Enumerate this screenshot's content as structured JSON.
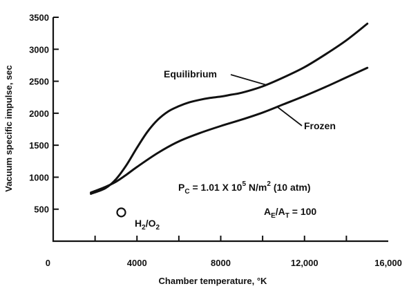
{
  "chart_data": {
    "type": "line",
    "title": "",
    "xlabel": "Chamber temperature, °K",
    "ylabel": "Vacuum specific impulse, sec",
    "xlim": [
      0,
      16000
    ],
    "ylim": [
      0,
      3500
    ],
    "x_ticks": [
      0,
      4000,
      8000,
      12000,
      16000
    ],
    "x_tick_labels": [
      "0",
      "4000",
      "8000",
      "12,000",
      "16,000"
    ],
    "y_ticks": [
      500,
      1000,
      1500,
      2000,
      2500,
      3000,
      3500
    ],
    "y_tick_labels": [
      "500",
      "1000",
      "1500",
      "2000",
      "2500",
      "3000",
      "3500"
    ],
    "grid": false,
    "series": [
      {
        "name": "Equilibrium",
        "x": [
          1800,
          2500,
          3000,
          3500,
          4000,
          4500,
          5000,
          5500,
          6000,
          6500,
          7000,
          7500,
          8000,
          8500,
          9000,
          10000,
          11000,
          12000,
          13000,
          14000,
          15000
        ],
        "y": [
          740,
          830,
          970,
          1190,
          1460,
          1710,
          1900,
          2030,
          2110,
          2170,
          2210,
          2240,
          2260,
          2290,
          2320,
          2420,
          2560,
          2720,
          2920,
          3140,
          3400
        ]
      },
      {
        "name": "Frozen",
        "x": [
          1800,
          2500,
          3000,
          3500,
          4000,
          5000,
          6000,
          7000,
          8000,
          9000,
          10000,
          11000,
          12000,
          13000,
          14000,
          15000
        ],
        "y": [
          760,
          850,
          930,
          1040,
          1160,
          1380,
          1560,
          1690,
          1800,
          1900,
          2010,
          2140,
          2270,
          2410,
          2560,
          2710
        ]
      }
    ],
    "marker": {
      "label_main": "H",
      "label_sub1": "2",
      "label_sep": "/O",
      "label_sub2": "2",
      "x": 3250,
      "y": 450
    },
    "annotations": {
      "pressure": {
        "p": "P",
        "p_sub": "C",
        "eq": " = 1.01 X 10",
        "exp": "5",
        "unit": " N/m",
        "unit_exp": "2",
        "atm": " (10 atm)"
      },
      "area_ratio": {
        "a1": "A",
        "a1_sub": "E",
        "slash": "/A",
        "a2_sub": "T",
        "val": " = 100"
      }
    }
  }
}
